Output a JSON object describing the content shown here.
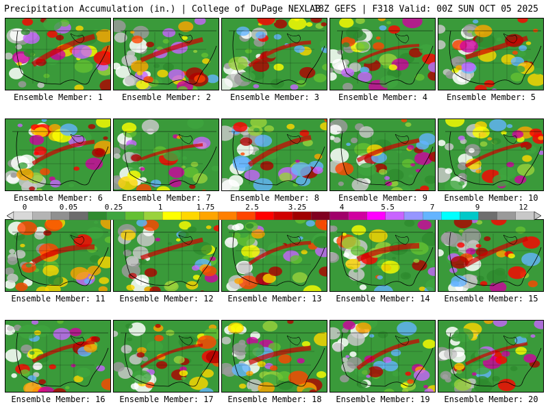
{
  "header": {
    "title_left": "Precipitation Accumulation (in.) | College of DuPage NEXLAB",
    "title_right": "18Z GEFS | F318 Valid: 00Z SUN OCT 05 2025"
  },
  "caption_prefix": "Ensemble Member:",
  "members": [
    {
      "label": "Ensemble Member: 1"
    },
    {
      "label": "Ensemble Member: 2"
    },
    {
      "label": "Ensemble Member: 3"
    },
    {
      "label": "Ensemble Member: 4"
    },
    {
      "label": "Ensemble Member: 5"
    },
    {
      "label": "Ensemble Member: 6"
    },
    {
      "label": "Ensemble Member: 7"
    },
    {
      "label": "Ensemble Member: 8"
    },
    {
      "label": "Ensemble Member: 9"
    },
    {
      "label": "Ensemble Member: 10"
    },
    {
      "label": "Ensemble Member: 11"
    },
    {
      "label": "Ensemble Member: 12"
    },
    {
      "label": "Ensemble Member: 13"
    },
    {
      "label": "Ensemble Member: 14"
    },
    {
      "label": "Ensemble Member: 15"
    },
    {
      "label": "Ensemble Member: 16"
    },
    {
      "label": "Ensemble Member: 17"
    },
    {
      "label": "Ensemble Member: 18"
    },
    {
      "label": "Ensemble Member: 19"
    },
    {
      "label": "Ensemble Member: 20"
    }
  ],
  "colorbar": {
    "tick_labels": [
      "0",
      "0.05",
      "0.25",
      "1",
      "1.75",
      "2.5",
      "3.25",
      "4",
      "5.5",
      "7",
      "9",
      "12"
    ],
    "colors": [
      "#d8d8d8",
      "#b4b4b4",
      "#909090",
      "#6c6c6c",
      "#2e8b2e",
      "#3fa53f",
      "#64c032",
      "#9ad23c",
      "#ffff00",
      "#ffd700",
      "#ffa500",
      "#ff7f00",
      "#ff4500",
      "#ff0000",
      "#d00000",
      "#a00000",
      "#800020",
      "#a0006a",
      "#d000a0",
      "#ff00ff",
      "#c864ff",
      "#9696ff",
      "#64b4ff",
      "#00ffff",
      "#00c8c8",
      "#6e6e6e",
      "#9a9a9a",
      "#c8c8c8"
    ]
  }
}
